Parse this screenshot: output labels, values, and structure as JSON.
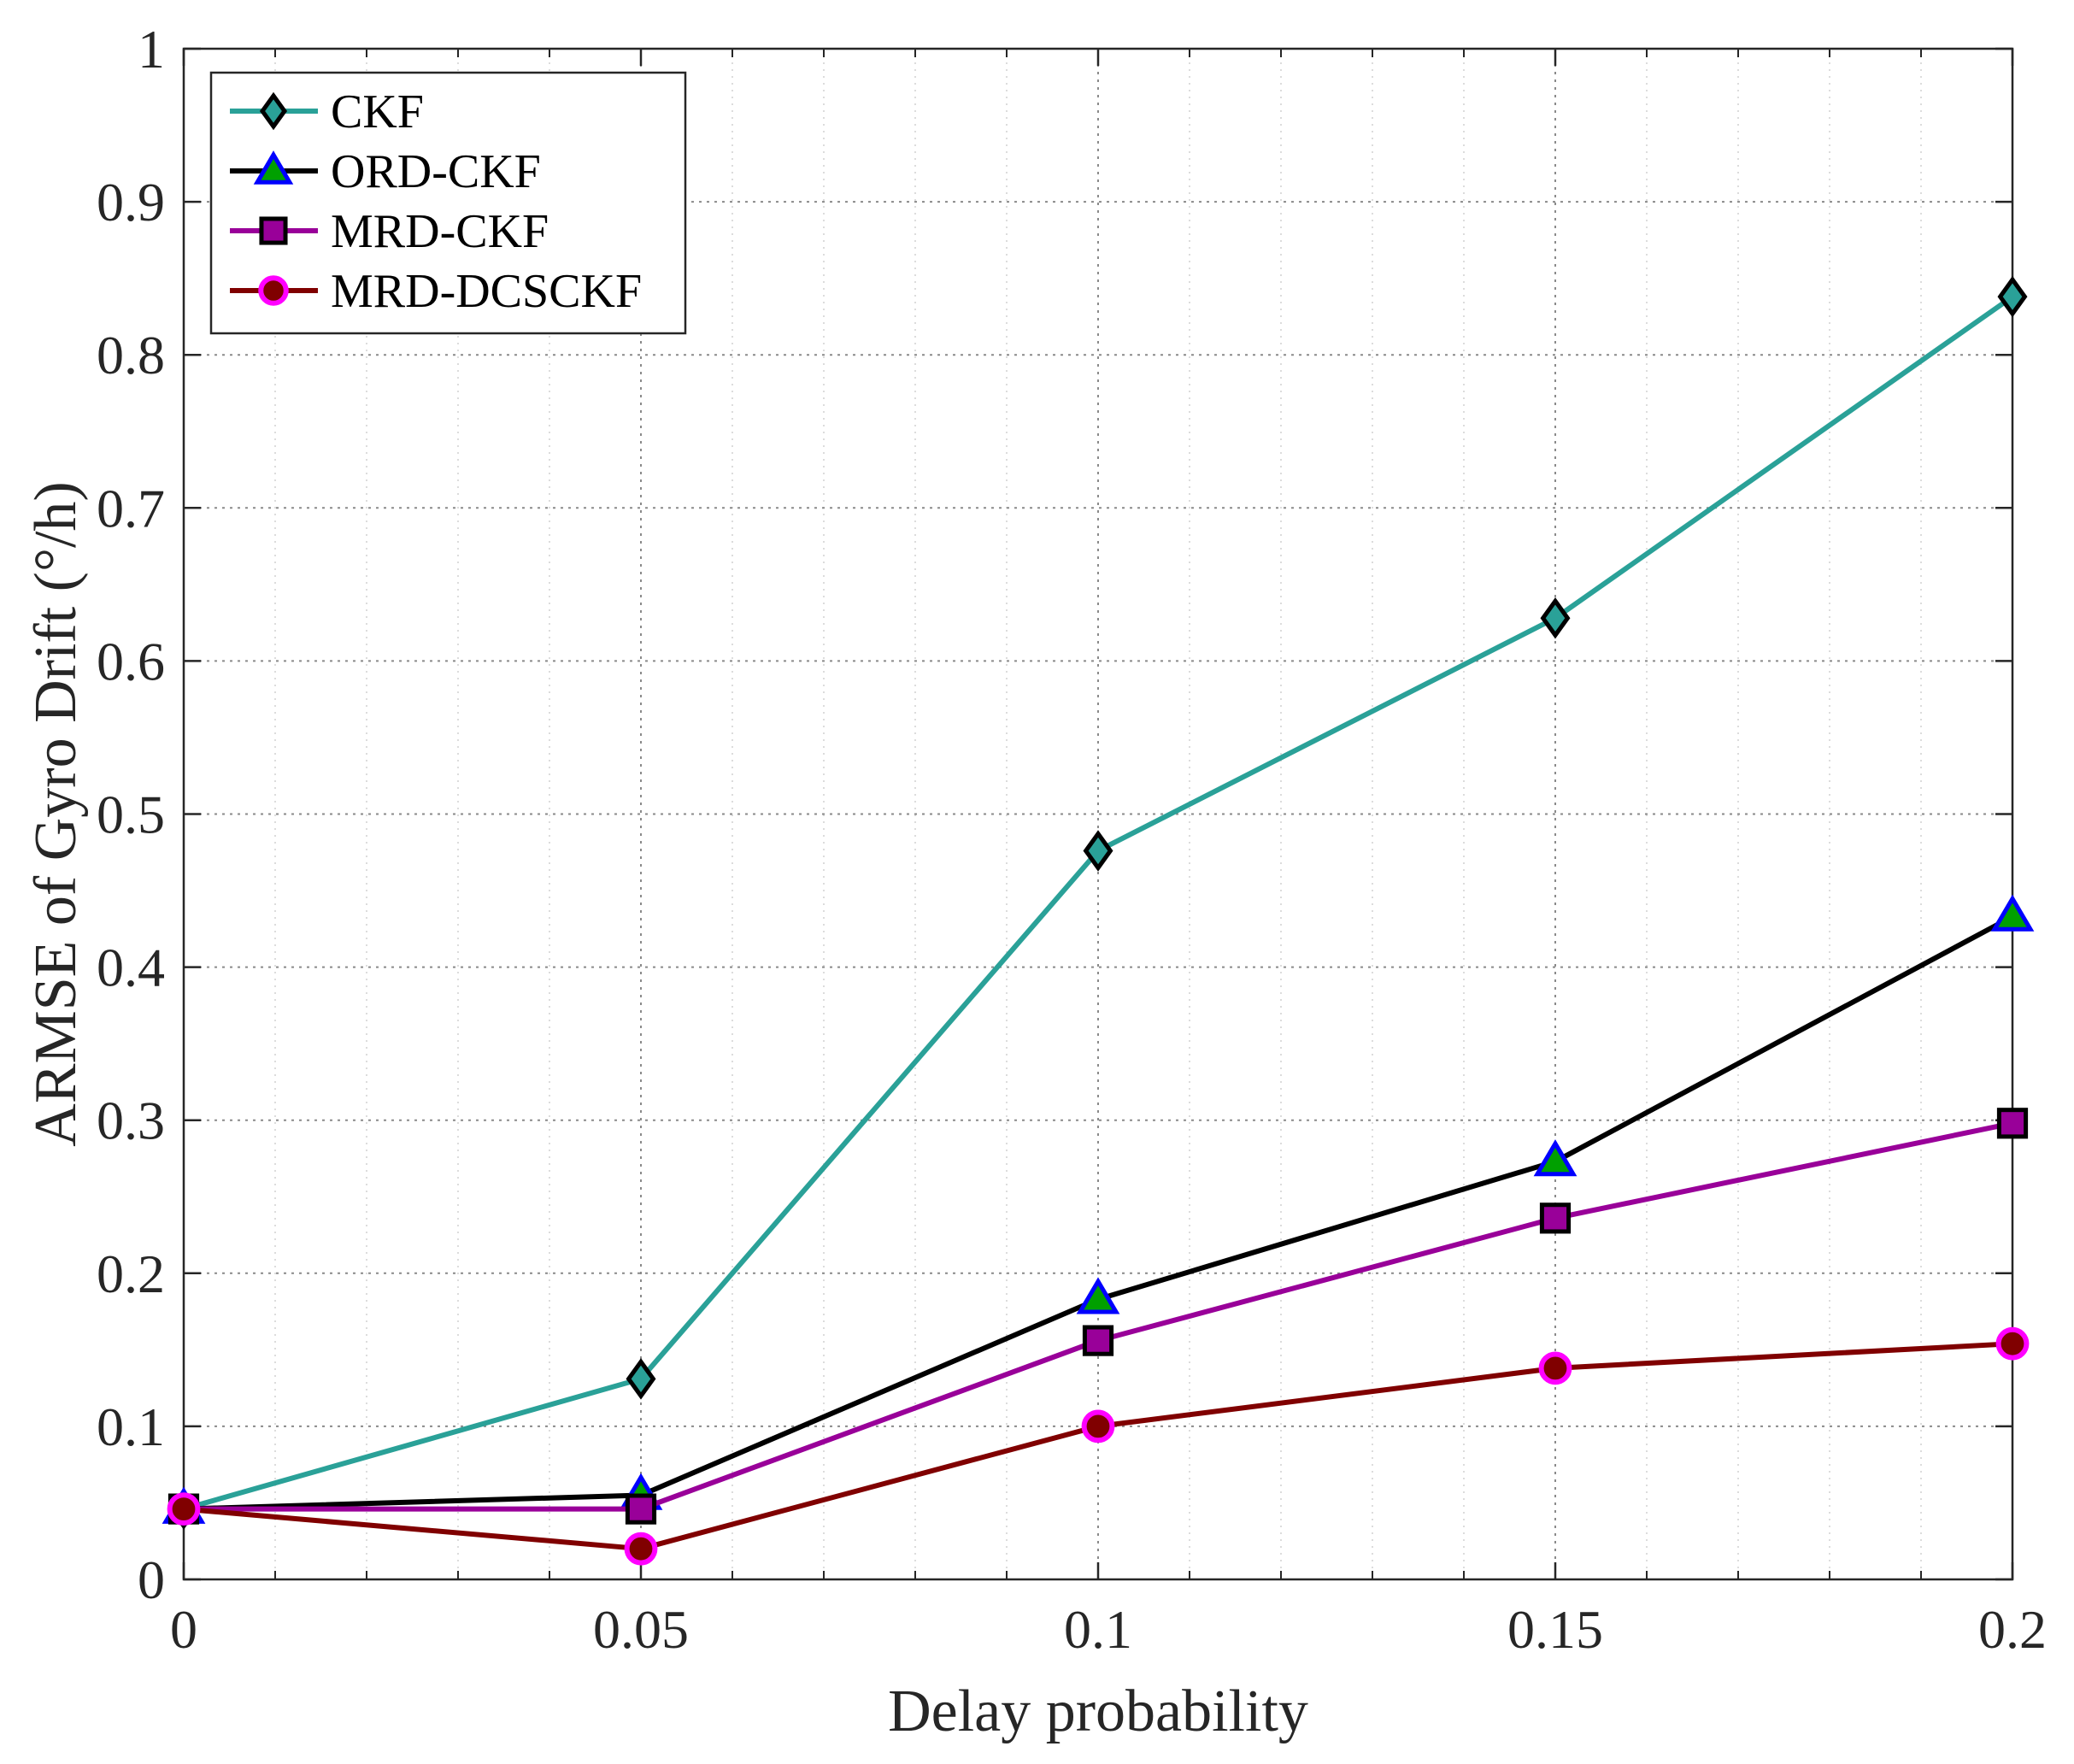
{
  "chart_data": {
    "type": "line",
    "title": "",
    "xlabel": "Delay probability",
    "ylabel": "ARMSE of Gyro Drift (°/h)",
    "x": [
      0,
      0.05,
      0.1,
      0.15,
      0.2
    ],
    "xlim": [
      0,
      0.2
    ],
    "ylim": [
      0,
      1
    ],
    "x_ticks": [
      0,
      0.05,
      0.1,
      0.15,
      0.2
    ],
    "x_tick_labels": [
      "0",
      "0.05",
      "0.1",
      "0.15",
      "0.2"
    ],
    "y_ticks": [
      0,
      0.1,
      0.2,
      0.3,
      0.4,
      0.5,
      0.6,
      0.7,
      0.8,
      0.9,
      1
    ],
    "y_tick_labels": [
      "0",
      "0.1",
      "0.2",
      "0.3",
      "0.4",
      "0.5",
      "0.6",
      "0.7",
      "0.8",
      "0.9",
      "1"
    ],
    "grid": true,
    "minor_grid": true,
    "legend_position": "top-left",
    "series": [
      {
        "name": "CKF",
        "values": [
          0.046,
          0.131,
          0.476,
          0.628,
          0.838
        ],
        "line_color": "#2aa198",
        "marker": "diamond",
        "marker_edge": "#000000",
        "marker_face": "#2aa198"
      },
      {
        "name": "ORD-CKF",
        "values": [
          0.046,
          0.055,
          0.183,
          0.273,
          0.433
        ],
        "line_color": "#000000",
        "marker": "triangle",
        "marker_edge": "#0000ff",
        "marker_face": "#00a000"
      },
      {
        "name": "MRD-CKF",
        "values": [
          0.046,
          0.046,
          0.156,
          0.236,
          0.298
        ],
        "line_color": "#990099",
        "marker": "square",
        "marker_edge": "#000000",
        "marker_face": "#990099"
      },
      {
        "name": "MRD-DCSCKF",
        "values": [
          0.046,
          0.02,
          0.1,
          0.138,
          0.154
        ],
        "line_color": "#800000",
        "marker": "circle",
        "marker_edge": "#ff00ff",
        "marker_face": "#800000"
      }
    ]
  }
}
